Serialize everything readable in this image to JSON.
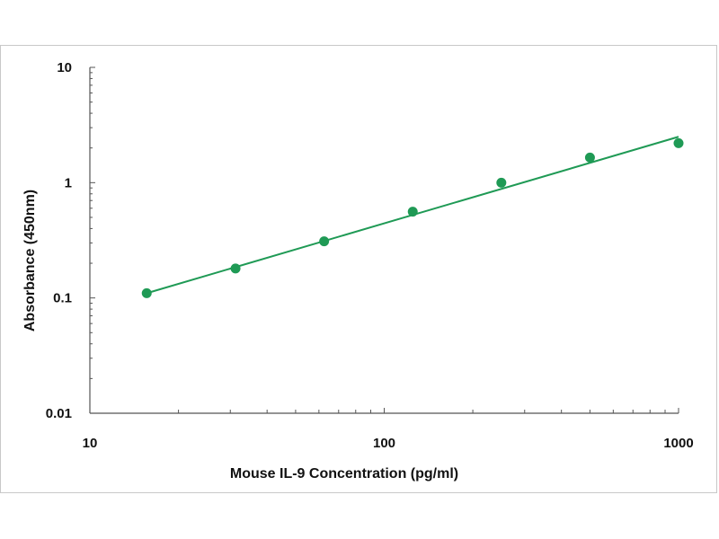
{
  "chart_data": {
    "type": "scatter",
    "xlabel": "Mouse IL-9 Concentration (pg/ml)",
    "ylabel": "Absorbance (450nm)",
    "xscale": "log",
    "yscale": "log",
    "xlim": [
      10,
      1000
    ],
    "ylim": [
      0.01,
      10
    ],
    "x_ticks": [
      "10",
      "100",
      "1000"
    ],
    "y_ticks": [
      "10",
      "1",
      "0.1",
      "0.01"
    ],
    "grid": false,
    "legend": "none",
    "colors": {
      "marker": "#1f9a55",
      "line": "#1f9a55",
      "axis": "#555555"
    },
    "series": [
      {
        "x": [
          15.6,
          31.25,
          62.5,
          125,
          250,
          500,
          1000
        ],
        "y": [
          0.11,
          0.18,
          0.31,
          0.56,
          1.0,
          1.65,
          2.2
        ]
      }
    ],
    "fit": {
      "type": "power",
      "x": [
        15.6,
        1000
      ],
      "y": [
        0.11,
        2.5
      ]
    }
  }
}
